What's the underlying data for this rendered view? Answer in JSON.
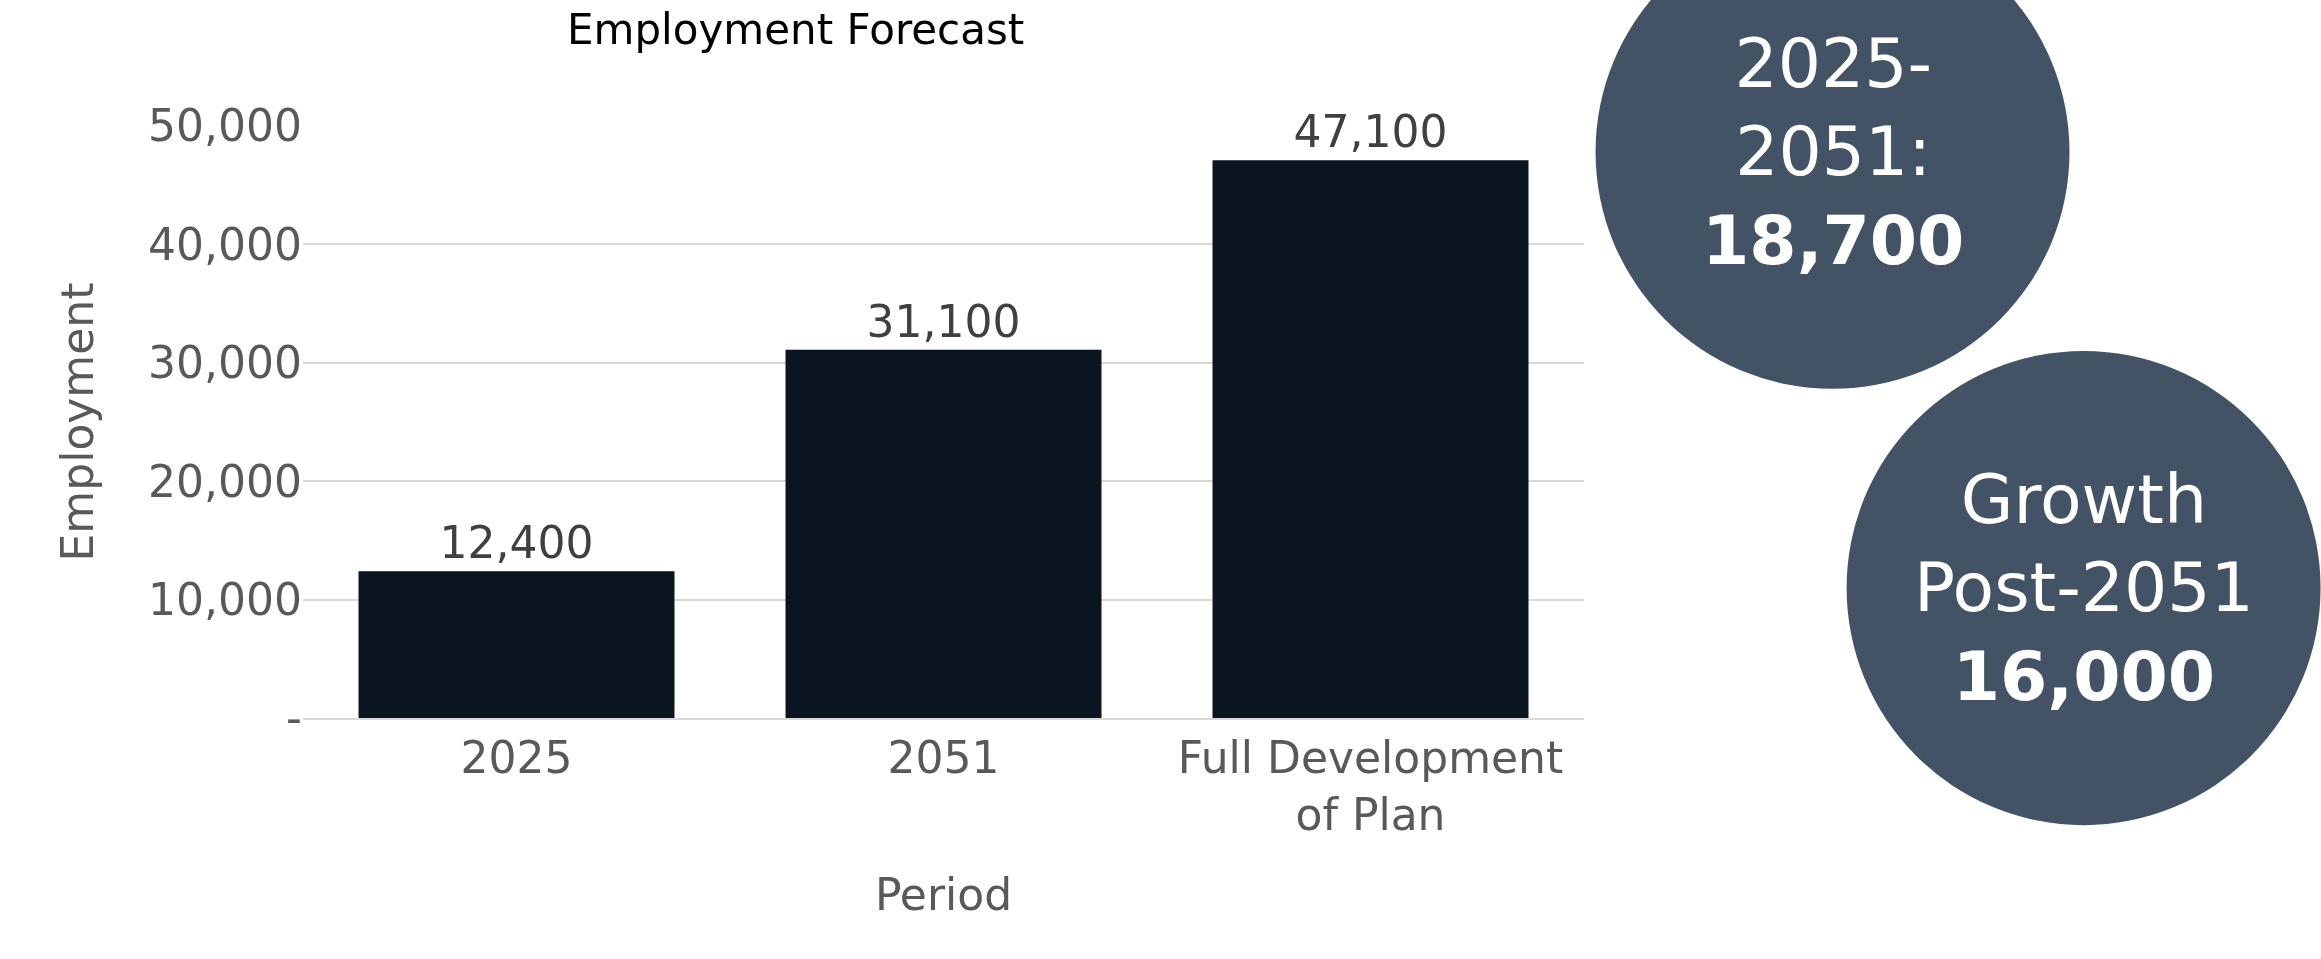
{
  "chart_data": {
    "type": "bar",
    "title": "Employment Forecast",
    "xlabel": "Period",
    "ylabel": "Employment",
    "categories": [
      "2025",
      "2051",
      "Full Development of Plan"
    ],
    "values": [
      12400,
      31100,
      47100
    ],
    "color": "#0b1520",
    "ylim": [
      0,
      50000
    ],
    "yticks": [
      {
        "value": 0,
        "label": "-"
      },
      {
        "value": 10000,
        "label": "10,000"
      },
      {
        "value": 20000,
        "label": "20,000"
      },
      {
        "value": 30000,
        "label": "30,000"
      },
      {
        "value": 40000,
        "label": "40,000"
      },
      {
        "value": 50000,
        "label": "50,000"
      }
    ],
    "value_labels": [
      "12,400",
      "31,100",
      "47,100"
    ],
    "grid": "y",
    "annotations": [
      "2025-\n2051:\n18,700",
      "Growth\nPost-2051\n16,000"
    ]
  }
}
